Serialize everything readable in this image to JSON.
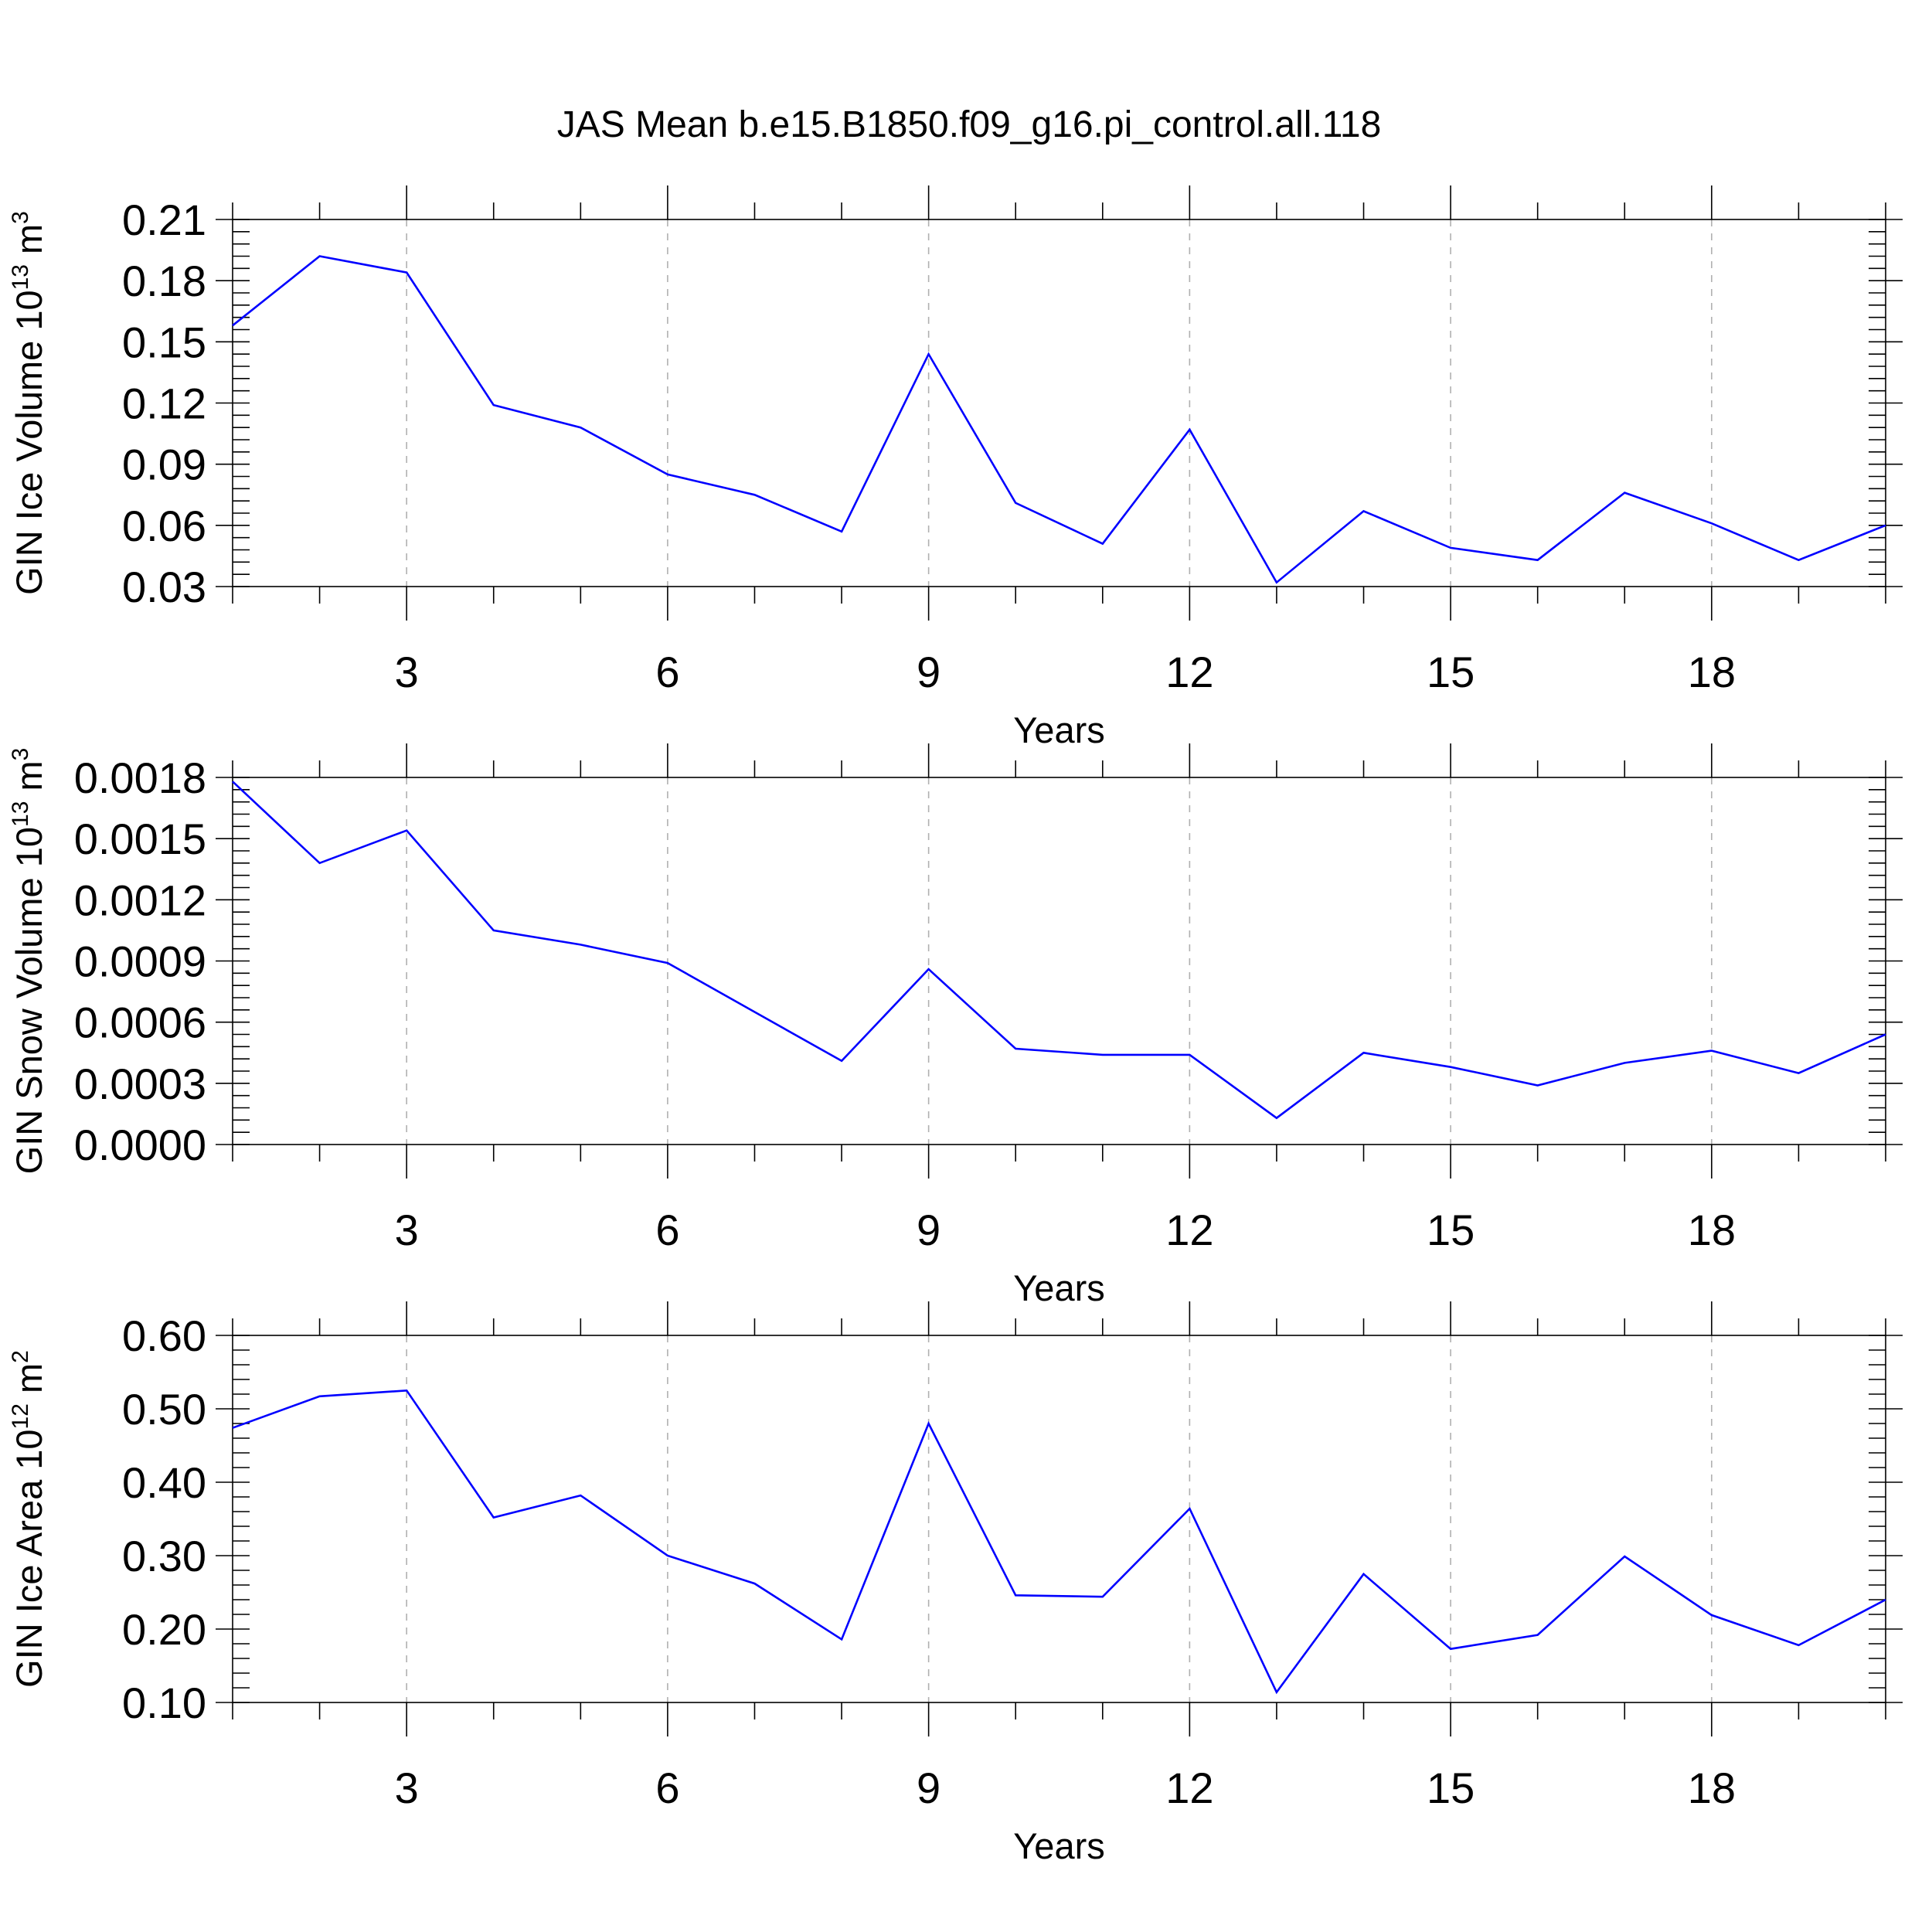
{
  "title": "JAS Mean b.e15.B1850.f09_g16.pi_control.all.118",
  "line_color": "#0000ff",
  "chart_data": [
    {
      "type": "line",
      "title": "JAS Mean b.e15.B1850.f09_g16.pi_control.all.118",
      "xlabel": "Years",
      "ylabel": "GIN Ice Volume 10",
      "ylabel_exp": "13",
      "ylabel_unit": " m",
      "ylabel_unit_exp": "3",
      "xlim": [
        1,
        20
      ],
      "ylim": [
        0.03,
        0.21
      ],
      "xticks": [
        3,
        6,
        9,
        12,
        15,
        18
      ],
      "xtick_labels": [
        "3",
        "6",
        "9",
        "12",
        "15",
        "18"
      ],
      "yticks": [
        0.03,
        0.06,
        0.09,
        0.12,
        0.15,
        0.18,
        0.21
      ],
      "ytick_labels": [
        "0.03",
        "0.06",
        "0.09",
        "0.12",
        "0.15",
        "0.18",
        "0.21"
      ],
      "grid": "dashed vertical at x ticks",
      "x": [
        1,
        2,
        3,
        4,
        5,
        6,
        7,
        8,
        9,
        10,
        11,
        12,
        13,
        14,
        15,
        16,
        17,
        18,
        19,
        20
      ],
      "values": [
        0.158,
        0.192,
        0.184,
        0.119,
        0.108,
        0.085,
        0.075,
        0.057,
        0.144,
        0.071,
        0.051,
        0.107,
        0.032,
        0.067,
        0.049,
        0.043,
        0.076,
        0.061,
        0.043,
        0.06
      ]
    },
    {
      "type": "line",
      "xlabel": "Years",
      "ylabel": "GIN Snow Volume 10",
      "ylabel_exp": "13",
      "ylabel_unit": " m",
      "ylabel_unit_exp": "3",
      "xlim": [
        1,
        20
      ],
      "ylim": [
        0.0,
        0.0018
      ],
      "xticks": [
        3,
        6,
        9,
        12,
        15,
        18
      ],
      "xtick_labels": [
        "3",
        "6",
        "9",
        "12",
        "15",
        "18"
      ],
      "yticks": [
        0.0,
        0.0003,
        0.0006,
        0.0009,
        0.0012,
        0.0015,
        0.0018
      ],
      "ytick_labels": [
        "0.0000",
        "0.0003",
        "0.0006",
        "0.0009",
        "0.0012",
        "0.0015",
        "0.0018"
      ],
      "grid": "dashed vertical at x ticks",
      "x": [
        1,
        2,
        3,
        4,
        5,
        6,
        7,
        8,
        9,
        10,
        11,
        12,
        13,
        14,
        15,
        16,
        17,
        18,
        19,
        20
      ],
      "values": [
        0.00178,
        0.00138,
        0.00154,
        0.00105,
        0.00098,
        0.00089,
        0.00065,
        0.00041,
        0.00086,
        0.00047,
        0.00044,
        0.00044,
        0.00013,
        0.00045,
        0.00038,
        0.00029,
        0.0004,
        0.00046,
        0.00035,
        0.00054
      ]
    },
    {
      "type": "line",
      "xlabel": "Years",
      "ylabel": "GIN Ice Area 10",
      "ylabel_exp": "12",
      "ylabel_unit": " m",
      "ylabel_unit_exp": "2",
      "xlim": [
        1,
        20
      ],
      "ylim": [
        0.1,
        0.6
      ],
      "xticks": [
        3,
        6,
        9,
        12,
        15,
        18
      ],
      "xtick_labels": [
        "3",
        "6",
        "9",
        "12",
        "15",
        "18"
      ],
      "yticks": [
        0.1,
        0.2,
        0.3,
        0.4,
        0.5,
        0.6
      ],
      "ytick_labels": [
        "0.10",
        "0.20",
        "0.30",
        "0.40",
        "0.50",
        "0.60"
      ],
      "grid": "dashed vertical at x ticks",
      "x": [
        1,
        2,
        3,
        4,
        5,
        6,
        7,
        8,
        9,
        10,
        11,
        12,
        13,
        14,
        15,
        16,
        17,
        18,
        19,
        20
      ],
      "values": [
        0.474,
        0.517,
        0.525,
        0.352,
        0.382,
        0.3,
        0.262,
        0.186,
        0.48,
        0.246,
        0.244,
        0.364,
        0.114,
        0.275,
        0.173,
        0.192,
        0.299,
        0.219,
        0.178,
        0.24
      ]
    }
  ]
}
